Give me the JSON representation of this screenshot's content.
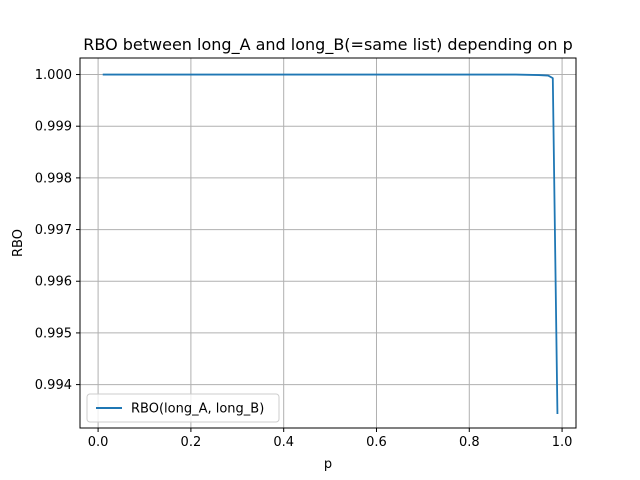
{
  "chart_data": {
    "type": "line",
    "title": "RBO between long_A and long_B(=same list) depending on p",
    "xlabel": "p",
    "ylabel": "RBO",
    "xlim": [
      -0.039,
      1.03
    ],
    "ylim": [
      0.99316,
      1.00032
    ],
    "xticks": [
      0.0,
      0.2,
      0.4,
      0.6,
      0.8,
      1.0
    ],
    "xtick_labels": [
      "0.0",
      "0.2",
      "0.4",
      "0.6",
      "0.8",
      "1.0"
    ],
    "yticks": [
      0.994,
      0.995,
      0.996,
      0.997,
      0.998,
      0.999,
      1.0
    ],
    "ytick_labels": [
      "0.994",
      "0.995",
      "0.996",
      "0.997",
      "0.998",
      "0.999",
      "1.000"
    ],
    "grid": true,
    "legend_position": "lower-left",
    "series": [
      {
        "name": "RBO(long_A, long_B)",
        "color": "#1f77b4",
        "x": [
          0.01,
          0.2,
          0.4,
          0.6,
          0.8,
          0.9,
          0.95,
          0.97,
          0.98,
          0.99
        ],
        "y": [
          1.0,
          1.0,
          1.0,
          1.0,
          1.0,
          1.0,
          0.99999,
          0.99998,
          0.99993,
          0.99343
        ]
      }
    ]
  }
}
